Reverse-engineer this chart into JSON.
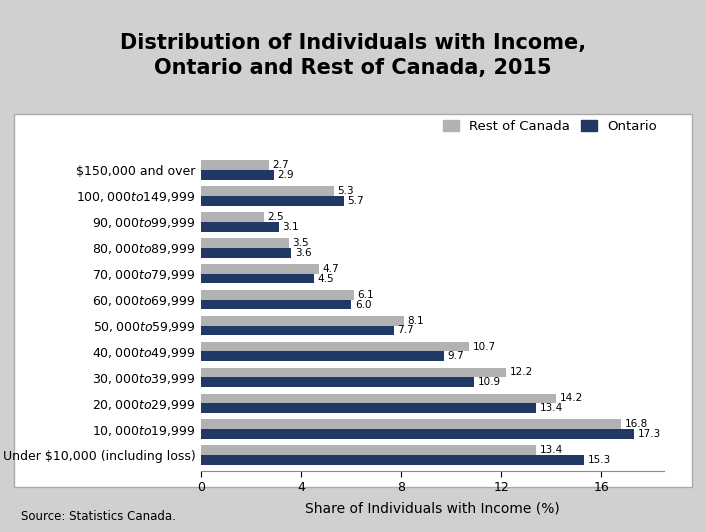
{
  "title": "Distribution of Individuals with Income,\nOntario and Rest of Canada, 2015",
  "categories": [
    "$150,000 and over",
    "$100,000 to $149,999",
    "$90,000 to $99,999",
    "$80,000 to $89,999",
    "$70,000 to $79,999",
    "$60,000 to $69,999",
    "$50,000 to $59,999",
    "$40,000 to $49,999",
    "$30,000 to $39,999",
    "$20,000 to $29,999",
    "$10,000 to $19,999",
    "Under $10,000 (including loss)"
  ],
  "rest_of_canada": [
    2.7,
    5.3,
    2.5,
    3.5,
    4.7,
    6.1,
    8.1,
    10.7,
    12.2,
    14.2,
    16.8,
    13.4
  ],
  "ontario": [
    2.9,
    5.7,
    3.1,
    3.6,
    4.5,
    6.0,
    7.7,
    9.7,
    10.9,
    13.4,
    17.3,
    15.3
  ],
  "rest_of_canada_color": "#b2b2b2",
  "ontario_color": "#1f3864",
  "xlabel": "Share of Individuals with Income (%)",
  "xlim": [
    0,
    18.5
  ],
  "xticks": [
    0,
    4,
    8,
    12,
    16
  ],
  "background_color": "#d0d0d0",
  "plot_bg_color": "#ffffff",
  "source_text": "Source: Statistics Canada.",
  "bar_height": 0.38,
  "title_fontsize": 15,
  "tick_fontsize": 9,
  "xlabel_fontsize": 10,
  "legend_fontsize": 9.5,
  "value_fontsize": 7.5
}
